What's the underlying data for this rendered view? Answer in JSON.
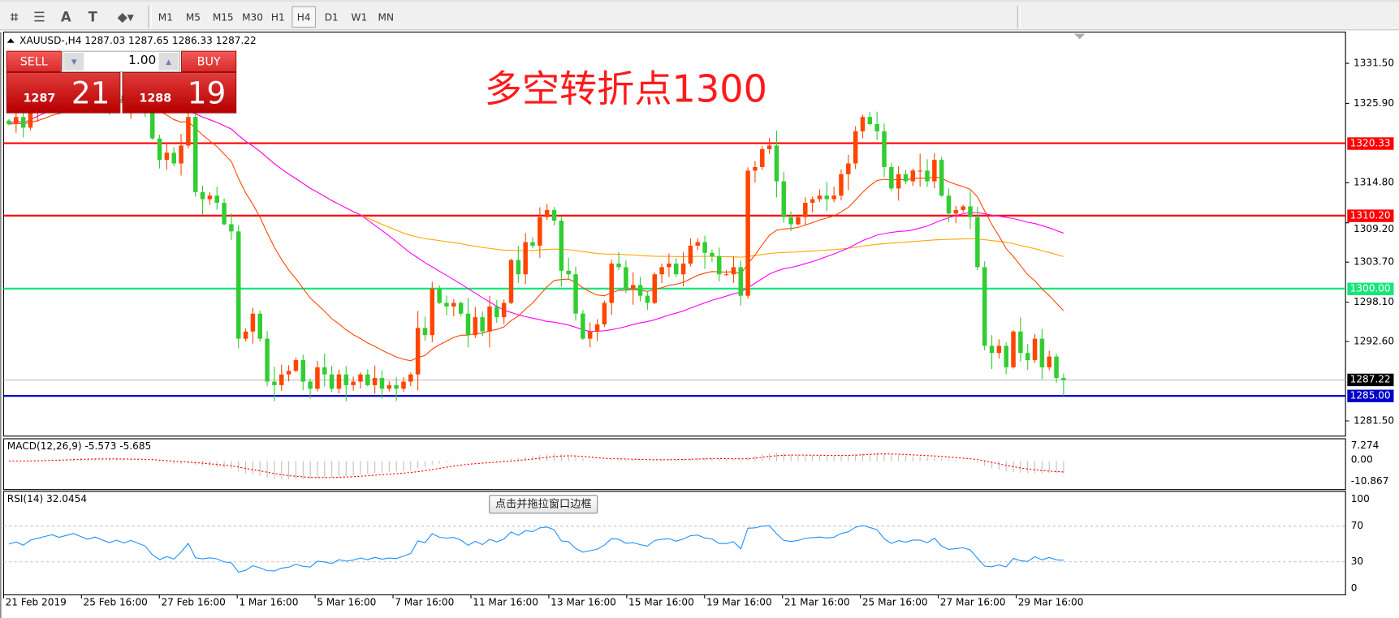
{
  "toolbar": {
    "tools": [
      {
        "name": "elliott-wave-icon",
        "glyph": "⌗"
      },
      {
        "name": "fibonacci-icon",
        "glyph": "☰"
      },
      {
        "name": "text-icon",
        "glyph": "A"
      },
      {
        "name": "text-label-icon",
        "glyph": "T"
      },
      {
        "name": "arrows-icon",
        "glyph": "⬥▾"
      }
    ],
    "timeframes": [
      "M1",
      "M5",
      "M15",
      "M30",
      "H1",
      "H4",
      "D1",
      "W1",
      "MN"
    ],
    "active_timeframe": "H4"
  },
  "chart": {
    "header": "XAUUSD-,H4  1287.03 1287.65 1286.33 1287.22",
    "annotation": "多空转折点1300",
    "trade_panel": {
      "sell_label": "SELL",
      "buy_label": "BUY",
      "lot": "1.00",
      "bid_small": "1287",
      "bid_big": "21",
      "ask_small": "1288",
      "ask_big": "19"
    },
    "price_axis": [
      "1331.50",
      "1325.90",
      "1314.80",
      "1309.20",
      "1303.70",
      "1298.10",
      "1292.60",
      "1281.50"
    ],
    "levels": [
      {
        "value": 1320.33,
        "label": "1320.33",
        "color": "#ff0000"
      },
      {
        "value": 1310.2,
        "label": "1310.20",
        "color": "#ff0000"
      },
      {
        "value": 1300.0,
        "label": "1300.00",
        "color": "#17e67a"
      },
      {
        "value": 1287.22,
        "label": "1287.22",
        "color": "#000000",
        "line": "#c0c0c0"
      },
      {
        "value": 1285.0,
        "label": "1285.00",
        "color": "#0000c8"
      }
    ],
    "time_axis": [
      "21 Feb 2019",
      "25 Feb 16:00",
      "27 Feb 16:00",
      "1 Mar 16:00",
      "5 Mar 16:00",
      "7 Mar 16:00",
      "11 Mar 16:00",
      "13 Mar 16:00",
      "15 Mar 16:00",
      "19 Mar 16:00",
      "21 Mar 16:00",
      "25 Mar 16:00",
      "27 Mar 16:00",
      "29 Mar 16:00"
    ],
    "colors": {
      "up": "#ff4500",
      "down": "#32cd32",
      "ma_fast": "#ff4500",
      "ma_mid": "#ff00ff",
      "ma_slow": "#ffa500",
      "rsi": "#1e90ff",
      "macd_signal": "#ff0000",
      "macd_hist": "#c0c0c0"
    }
  },
  "macd": {
    "label": "MACD(12,26,9) -5.573 -5.685",
    "axis": [
      "7.274",
      "0.00",
      "-10.867"
    ]
  },
  "rsi": {
    "label": "RSI(14) 32.0454",
    "axis": [
      "100",
      "70",
      "30",
      "0"
    ]
  },
  "tooltip": "点击并拖拉窗口边框",
  "chart_data": {
    "type": "candlestick",
    "symbol": "XAUUSD",
    "timeframe": "H4",
    "ylim": [
      1281.5,
      1331.5
    ],
    "closes": [
      1323,
      1324,
      1322.5,
      1325,
      1326,
      1327,
      1328,
      1327,
      1328,
      1329,
      1328,
      1327,
      1328,
      1327,
      1326,
      1327,
      1326,
      1327,
      1326,
      1325,
      1321,
      1318,
      1319,
      1317.5,
      1320,
      1324,
      1313.5,
      1312.5,
      1313,
      1312,
      1309,
      1308,
      1293,
      1294,
      1296.5,
      1293,
      1287,
      1286.5,
      1288,
      1288.5,
      1290,
      1287,
      1286,
      1289,
      1288,
      1286,
      1288,
      1286.5,
      1287,
      1288,
      1286.5,
      1287.5,
      1286,
      1286.5,
      1286,
      1287,
      1288,
      1294.5,
      1293.5,
      1300,
      1298,
      1297.5,
      1298,
      1296.5,
      1293.5,
      1296,
      1294,
      1297.5,
      1296,
      1298,
      1304,
      1302,
      1306.5,
      1306,
      1310,
      1311,
      1309.5,
      1302.5,
      1302,
      1296.5,
      1293,
      1294,
      1295,
      1298,
      1303.5,
      1303,
      1300,
      1300.5,
      1299,
      1298,
      1302,
      1303,
      1303.5,
      1302,
      1303.5,
      1306,
      1306.5,
      1305,
      1304.5,
      1302,
      1302,
      1303,
      1299,
      1316.5,
      1317,
      1319.5,
      1320,
      1315,
      1310,
      1309,
      1310,
      1312,
      1312.5,
      1313,
      1312.5,
      1313,
      1316,
      1317.5,
      1322,
      1324,
      1323,
      1322,
      1317,
      1314,
      1316,
      1315,
      1316.5,
      1316.5,
      1315,
      1318,
      1313,
      1310.5,
      1311,
      1311.5,
      1310,
      1303,
      1292,
      1291,
      1292,
      1289,
      1294,
      1291,
      1290,
      1293,
      1289,
      1290.5,
      1287.5,
      1287.22
    ]
  }
}
